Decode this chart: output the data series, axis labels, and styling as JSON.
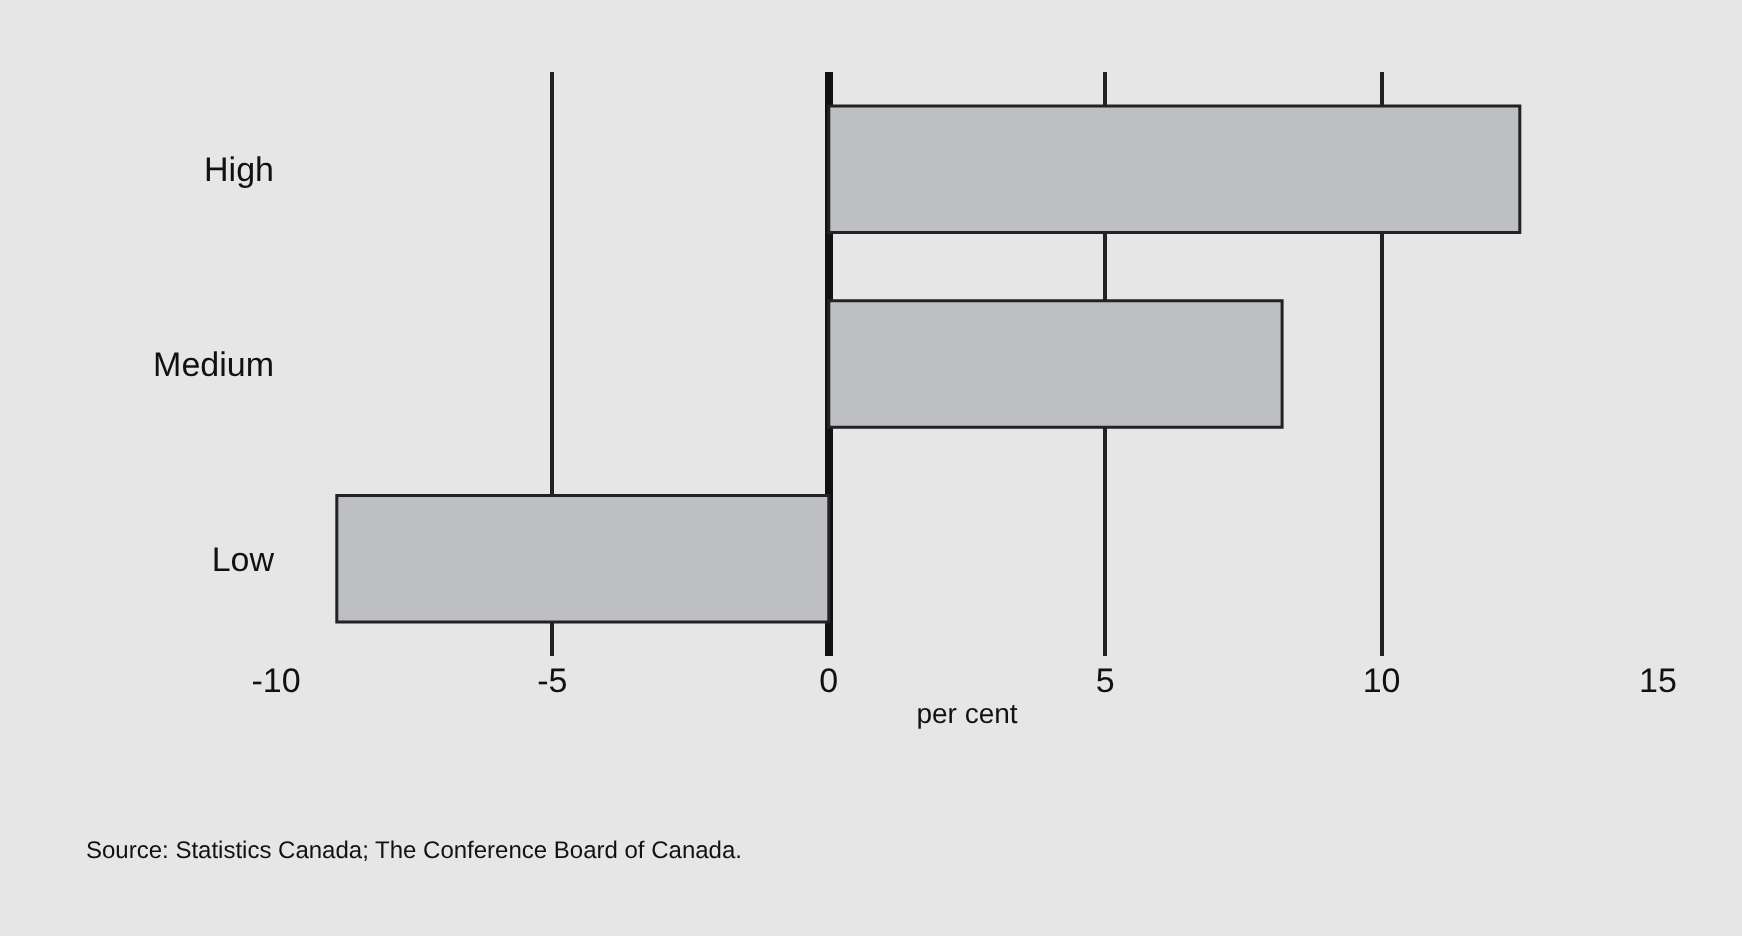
{
  "chart_data": {
    "type": "bar",
    "orientation": "horizontal",
    "xlabel": "per cent",
    "categories": [
      "High",
      "Medium",
      "Low"
    ],
    "values": [
      12.5,
      8.2,
      -8.9
    ],
    "color": "#bebfc3",
    "xlim": [
      -10,
      15
    ],
    "xticks": [
      -10,
      -5,
      0,
      5,
      10,
      15
    ],
    "grid": "x",
    "annotations": [
      "Source: Statistics Canada; The Conference Board of Canada."
    ]
  }
}
